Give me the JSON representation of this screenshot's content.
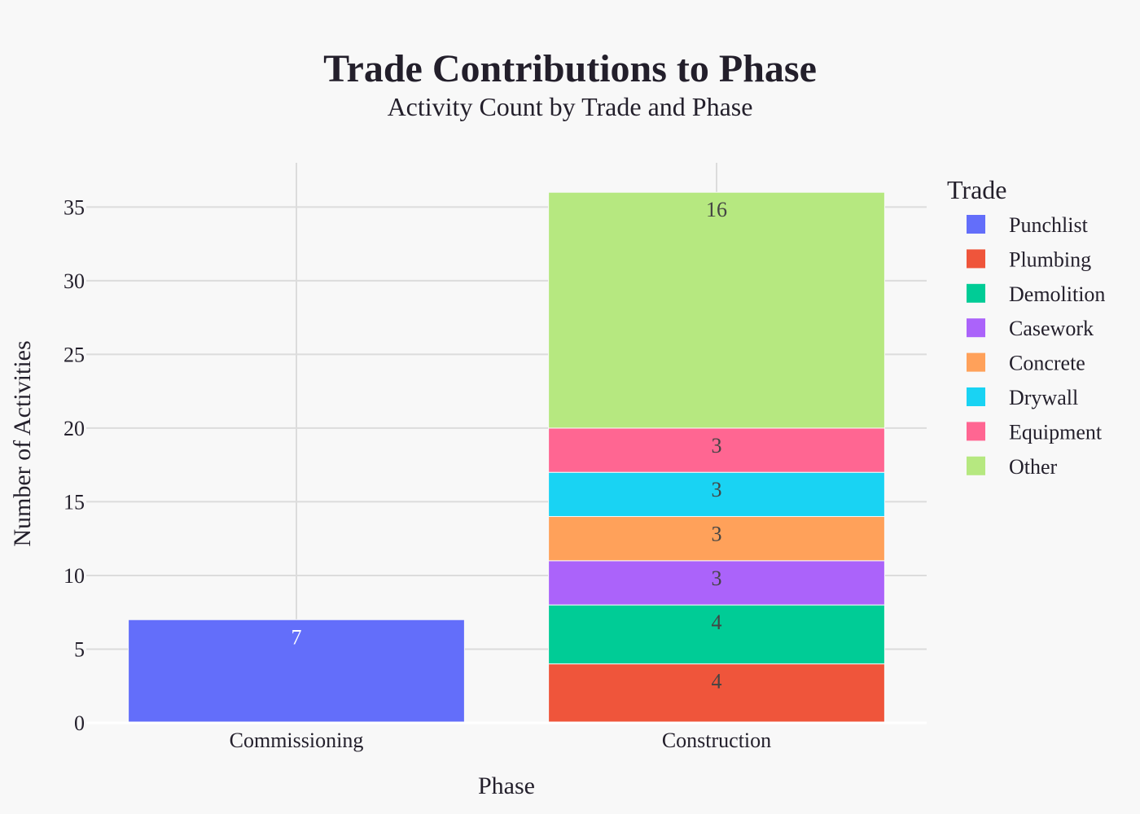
{
  "chart_data": {
    "type": "bar",
    "stacked": true,
    "title": "Trade Contributions to Phase",
    "subtitle": "Activity Count by Trade and Phase",
    "xlabel": "Phase",
    "ylabel": "Number of Activities",
    "categories": [
      "Commissioning",
      "Construction"
    ],
    "ylim": [
      0,
      38
    ],
    "yticks": [
      0,
      5,
      10,
      15,
      20,
      25,
      30,
      35
    ],
    "grid": true,
    "legend": {
      "title": "Trade",
      "position": "right"
    },
    "series": [
      {
        "name": "Punchlist",
        "color": "#636efa",
        "values": [
          7,
          0
        ],
        "label_color": "#ffffff"
      },
      {
        "name": "Plumbing",
        "color": "#ef553b",
        "values": [
          0,
          4
        ],
        "label_color": "#444444"
      },
      {
        "name": "Demolition",
        "color": "#00cc96",
        "values": [
          0,
          4
        ],
        "label_color": "#444444"
      },
      {
        "name": "Casework",
        "color": "#ab63fa",
        "values": [
          0,
          3
        ],
        "label_color": "#444444"
      },
      {
        "name": "Concrete",
        "color": "#ffa15a",
        "values": [
          0,
          3
        ],
        "label_color": "#444444"
      },
      {
        "name": "Drywall",
        "color": "#19d3f3",
        "values": [
          0,
          3
        ],
        "label_color": "#444444"
      },
      {
        "name": "Equipment",
        "color": "#ff6692",
        "values": [
          0,
          3
        ],
        "label_color": "#444444"
      },
      {
        "name": "Other",
        "color": "#b6e880",
        "values": [
          0,
          16
        ],
        "label_color": "#444444"
      }
    ]
  }
}
